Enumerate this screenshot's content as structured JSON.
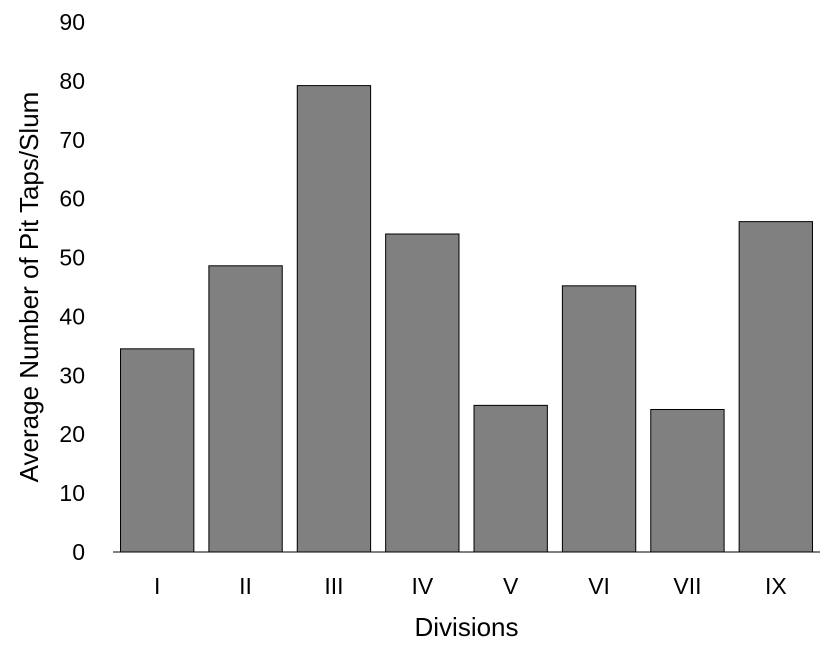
{
  "chart_data": {
    "type": "bar",
    "categories": [
      "I",
      "II",
      "III",
      "IV",
      "V",
      "VI",
      "VII",
      "IX"
    ],
    "values": [
      34.5,
      48.6,
      79.2,
      54.0,
      24.9,
      45.2,
      24.2,
      56.1
    ],
    "xlabel": "Divisions",
    "ylabel": "Average Number of Pit Taps/Slum",
    "ylim": [
      0,
      90
    ],
    "yticks": [
      0,
      10,
      20,
      30,
      40,
      50,
      60,
      70,
      80,
      90
    ],
    "grid": false,
    "legend": "none",
    "bar_color": "#808080",
    "edge_color": "#000000"
  }
}
